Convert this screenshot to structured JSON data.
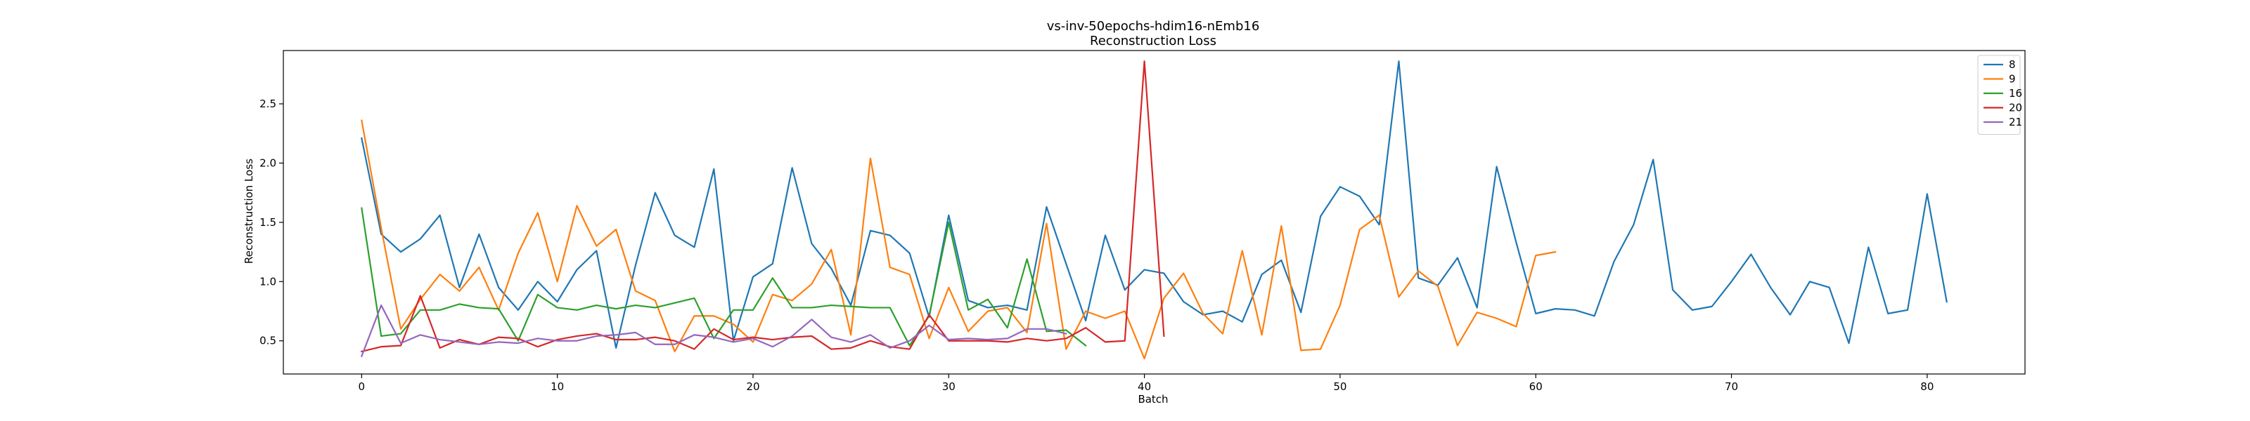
{
  "chart_data": {
    "type": "line",
    "title": "vs-inv-50epochs-hdim16-nEmb16",
    "subtitle": "Reconstruction Loss",
    "xlabel": "Batch",
    "ylabel": "Reconstruction Loss",
    "xlim": [
      -4,
      85
    ],
    "ylim": [
      0.22,
      2.95
    ],
    "xticks": [
      0,
      10,
      20,
      30,
      40,
      50,
      60,
      70,
      80
    ],
    "yticks": [
      0.5,
      1.0,
      1.5,
      2.0,
      2.5
    ],
    "ytick_labels": [
      "0.5",
      "1.0",
      "1.5",
      "2.0",
      "2.5"
    ],
    "grid": false,
    "legend_position": "top-right",
    "series": [
      {
        "name": "8",
        "color": "#1f77b4",
        "values": [
          2.21,
          1.4,
          1.25,
          1.36,
          1.56,
          0.95,
          1.4,
          0.95,
          0.76,
          1.0,
          0.83,
          1.1,
          1.26,
          0.44,
          1.14,
          1.75,
          1.39,
          1.29,
          1.95,
          0.5,
          1.04,
          1.15,
          1.96,
          1.32,
          1.11,
          0.8,
          1.43,
          1.39,
          1.24,
          0.7,
          1.56,
          0.84,
          0.78,
          0.8,
          0.76,
          1.63,
          1.15,
          0.67,
          1.39,
          0.93,
          1.1,
          1.07,
          0.83,
          0.72,
          0.75,
          0.66,
          1.06,
          1.18,
          0.74,
          1.55,
          1.8,
          1.72,
          1.48,
          2.86,
          1.03,
          0.97,
          1.2,
          0.78,
          1.97,
          1.33,
          0.73,
          0.77,
          0.76,
          0.71,
          1.17,
          1.48,
          2.03,
          0.93,
          0.76,
          0.79,
          1.0,
          1.23,
          0.95,
          0.72,
          1.0,
          0.95,
          0.48,
          1.29,
          0.73,
          0.76,
          1.74,
          0.83
        ]
      },
      {
        "name": "9",
        "color": "#ff7f0e",
        "values": [
          2.36,
          1.45,
          0.6,
          0.85,
          1.06,
          0.92,
          1.12,
          0.76,
          1.24,
          1.58,
          1.0,
          1.64,
          1.3,
          1.44,
          0.92,
          0.84,
          0.41,
          0.71,
          0.71,
          0.64,
          0.49,
          0.89,
          0.84,
          0.98,
          1.27,
          0.55,
          2.04,
          1.12,
          1.06,
          0.52,
          0.95,
          0.58,
          0.75,
          0.78,
          0.57,
          1.49,
          0.43,
          0.75,
          0.69,
          0.75,
          0.35,
          0.86,
          1.07,
          0.73,
          0.56,
          1.26,
          0.55,
          1.47,
          0.42,
          0.43,
          0.8,
          1.44,
          1.56,
          0.87,
          1.09,
          0.96,
          0.46,
          0.74,
          0.69,
          0.62,
          1.22,
          1.25
        ]
      },
      {
        "name": "16",
        "color": "#2ca02c",
        "values": [
          1.62,
          0.54,
          0.56,
          0.76,
          0.76,
          0.81,
          0.78,
          0.77,
          0.5,
          0.89,
          0.78,
          0.76,
          0.8,
          0.77,
          0.8,
          0.78,
          0.82,
          0.86,
          0.52,
          0.76,
          0.76,
          1.03,
          0.78,
          0.78,
          0.8,
          0.79,
          0.78,
          0.78,
          0.46,
          0.71,
          1.5,
          0.76,
          0.85,
          0.61,
          1.19,
          0.58,
          0.59,
          0.46
        ]
      },
      {
        "name": "20",
        "color": "#d62728",
        "values": [
          0.41,
          0.45,
          0.46,
          0.88,
          0.44,
          0.51,
          0.47,
          0.53,
          0.52,
          0.45,
          0.51,
          0.54,
          0.56,
          0.51,
          0.51,
          0.53,
          0.5,
          0.43,
          0.6,
          0.51,
          0.53,
          0.51,
          0.53,
          0.54,
          0.43,
          0.44,
          0.5,
          0.45,
          0.43,
          0.72,
          0.5,
          0.5,
          0.5,
          0.49,
          0.52,
          0.5,
          0.52,
          0.61,
          0.49,
          0.5,
          2.86,
          0.54
        ]
      },
      {
        "name": "21",
        "color": "#9467bd",
        "values": [
          0.37,
          0.8,
          0.48,
          0.55,
          0.51,
          0.49,
          0.47,
          0.49,
          0.48,
          0.52,
          0.5,
          0.5,
          0.54,
          0.55,
          0.57,
          0.47,
          0.47,
          0.55,
          0.53,
          0.49,
          0.52,
          0.45,
          0.54,
          0.68,
          0.53,
          0.49,
          0.55,
          0.44,
          0.5,
          0.63,
          0.51,
          0.52,
          0.51,
          0.52,
          0.6,
          0.6,
          0.56
        ]
      }
    ]
  }
}
